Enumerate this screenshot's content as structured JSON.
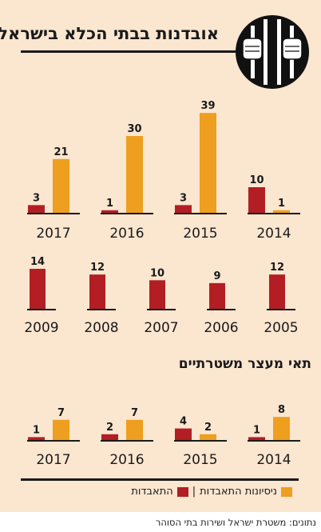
{
  "title": "אובדנות בבתי הכלא בישראל",
  "subtitle": "תאי מעצר משטרתיים",
  "legend": {
    "attempts": "ניסיונות התאבדות",
    "separator": "|",
    "suicides": "התאבדות"
  },
  "source": "נתונים: משטרת ישראל ושירות בתי הסוהר",
  "colors": {
    "suicide": "#b21e23",
    "attempt": "#ee9f1f",
    "background": "#fbe6d0",
    "text": "#1a1a1a"
  },
  "icon": "prison-bars-hands-icon",
  "chart_data": [
    {
      "type": "bar",
      "categories": [
        "2017",
        "2016",
        "2015",
        "2014"
      ],
      "series": [
        {
          "name": "התאבדות",
          "values": [
            3,
            1,
            3,
            10
          ]
        },
        {
          "name": "ניסיונות התאבדות",
          "values": [
            21,
            30,
            39,
            1
          ]
        }
      ]
    },
    {
      "type": "bar",
      "categories": [
        "2009",
        "2008",
        "2007",
        "2006",
        "2005"
      ],
      "series": [
        {
          "name": "התאבדות",
          "values": [
            14,
            12,
            10,
            9,
            12
          ]
        }
      ]
    },
    {
      "type": "bar",
      "title": "תאי מעצר משטרתיים",
      "categories": [
        "2017",
        "2016",
        "2015",
        "2014"
      ],
      "series": [
        {
          "name": "התאבדות",
          "values": [
            1,
            2,
            4,
            1
          ]
        },
        {
          "name": "ניסיונות התאבדות",
          "values": [
            7,
            7,
            2,
            8
          ]
        }
      ]
    }
  ]
}
